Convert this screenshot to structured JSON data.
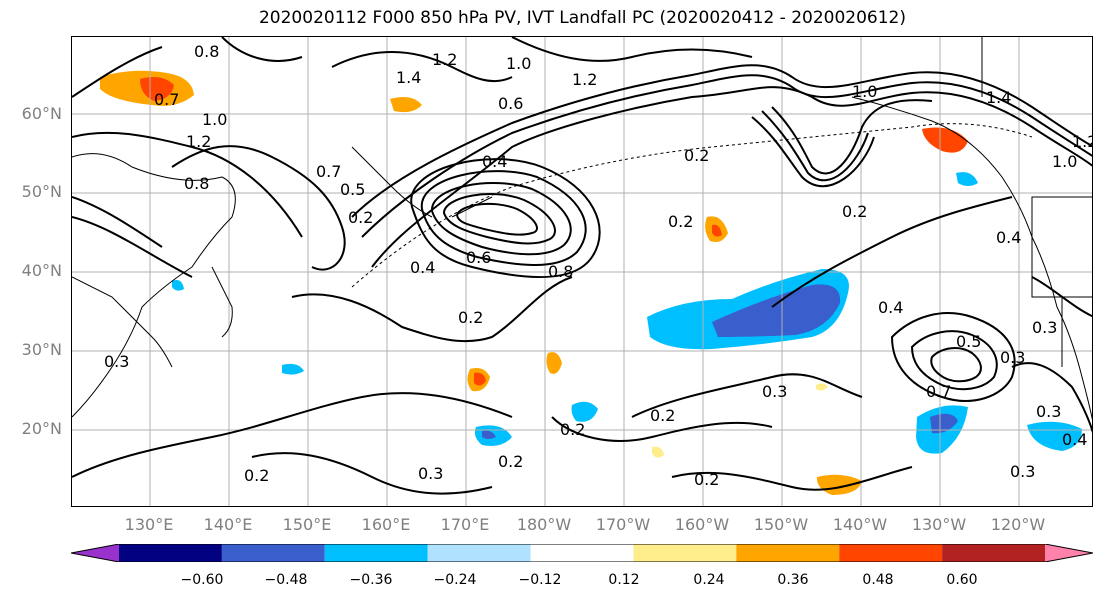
{
  "title": "2020020112 F000 850 hPa PV, IVT Landfall PC (2020020412 - 2020020612)",
  "map": {
    "lat_labels": [
      "60°N",
      "50°N",
      "40°N",
      "30°N",
      "20°N"
    ],
    "lon_labels": [
      "130°E",
      "140°E",
      "150°E",
      "160°E",
      "170°E",
      "180°W",
      "170°W",
      "160°W",
      "150°W",
      "140°W",
      "130°W",
      "120°W"
    ],
    "projection_extent": {
      "lon_west": "120°E",
      "lon_east": "110°W",
      "lat_south": "10°N",
      "lat_north": "70°N"
    },
    "gridlines": true,
    "contour_labels": [
      "0.8",
      "1.2",
      "1.4",
      "1.0",
      "1.2",
      "0.7",
      "1.0",
      "1.2",
      "0.6",
      "0.2",
      "1.0",
      "1.4",
      "1.2",
      "1.0",
      "0.7",
      "0.8",
      "0.5",
      "0.2",
      "0.4",
      "0.6",
      "0.4",
      "0.8",
      "0.2",
      "0.4",
      "0.2",
      "0.2",
      "0.4",
      "0.3",
      "0.5",
      "0.3",
      "0.7",
      "0.2",
      "0.3",
      "0.2",
      "0.3",
      "0.4",
      "0.3",
      "0.2",
      "0.2",
      "0.2",
      "0.3",
      "0.3"
    ]
  },
  "colorbar": {
    "ticks": [
      "−0.60",
      "−0.48",
      "−0.36",
      "−0.24",
      "−0.12",
      "0.12",
      "0.24",
      "0.36",
      "0.48",
      "0.60"
    ],
    "bins": [
      {
        "color": "#9932CC"
      },
      {
        "color": "#000080"
      },
      {
        "color": "#3A5FCD"
      },
      {
        "color": "#00BFFF"
      },
      {
        "color": "#B0E2FF"
      },
      {
        "color": "#FFFFFF"
      },
      {
        "color": "#FFEC8B"
      },
      {
        "color": "#FFA500"
      },
      {
        "color": "#FF4500"
      },
      {
        "color": "#B22222"
      },
      {
        "color": "#FF82AB"
      }
    ]
  },
  "colors": {
    "grid": "#b0b0b0",
    "contour": "#000000",
    "coast": "#000000"
  }
}
